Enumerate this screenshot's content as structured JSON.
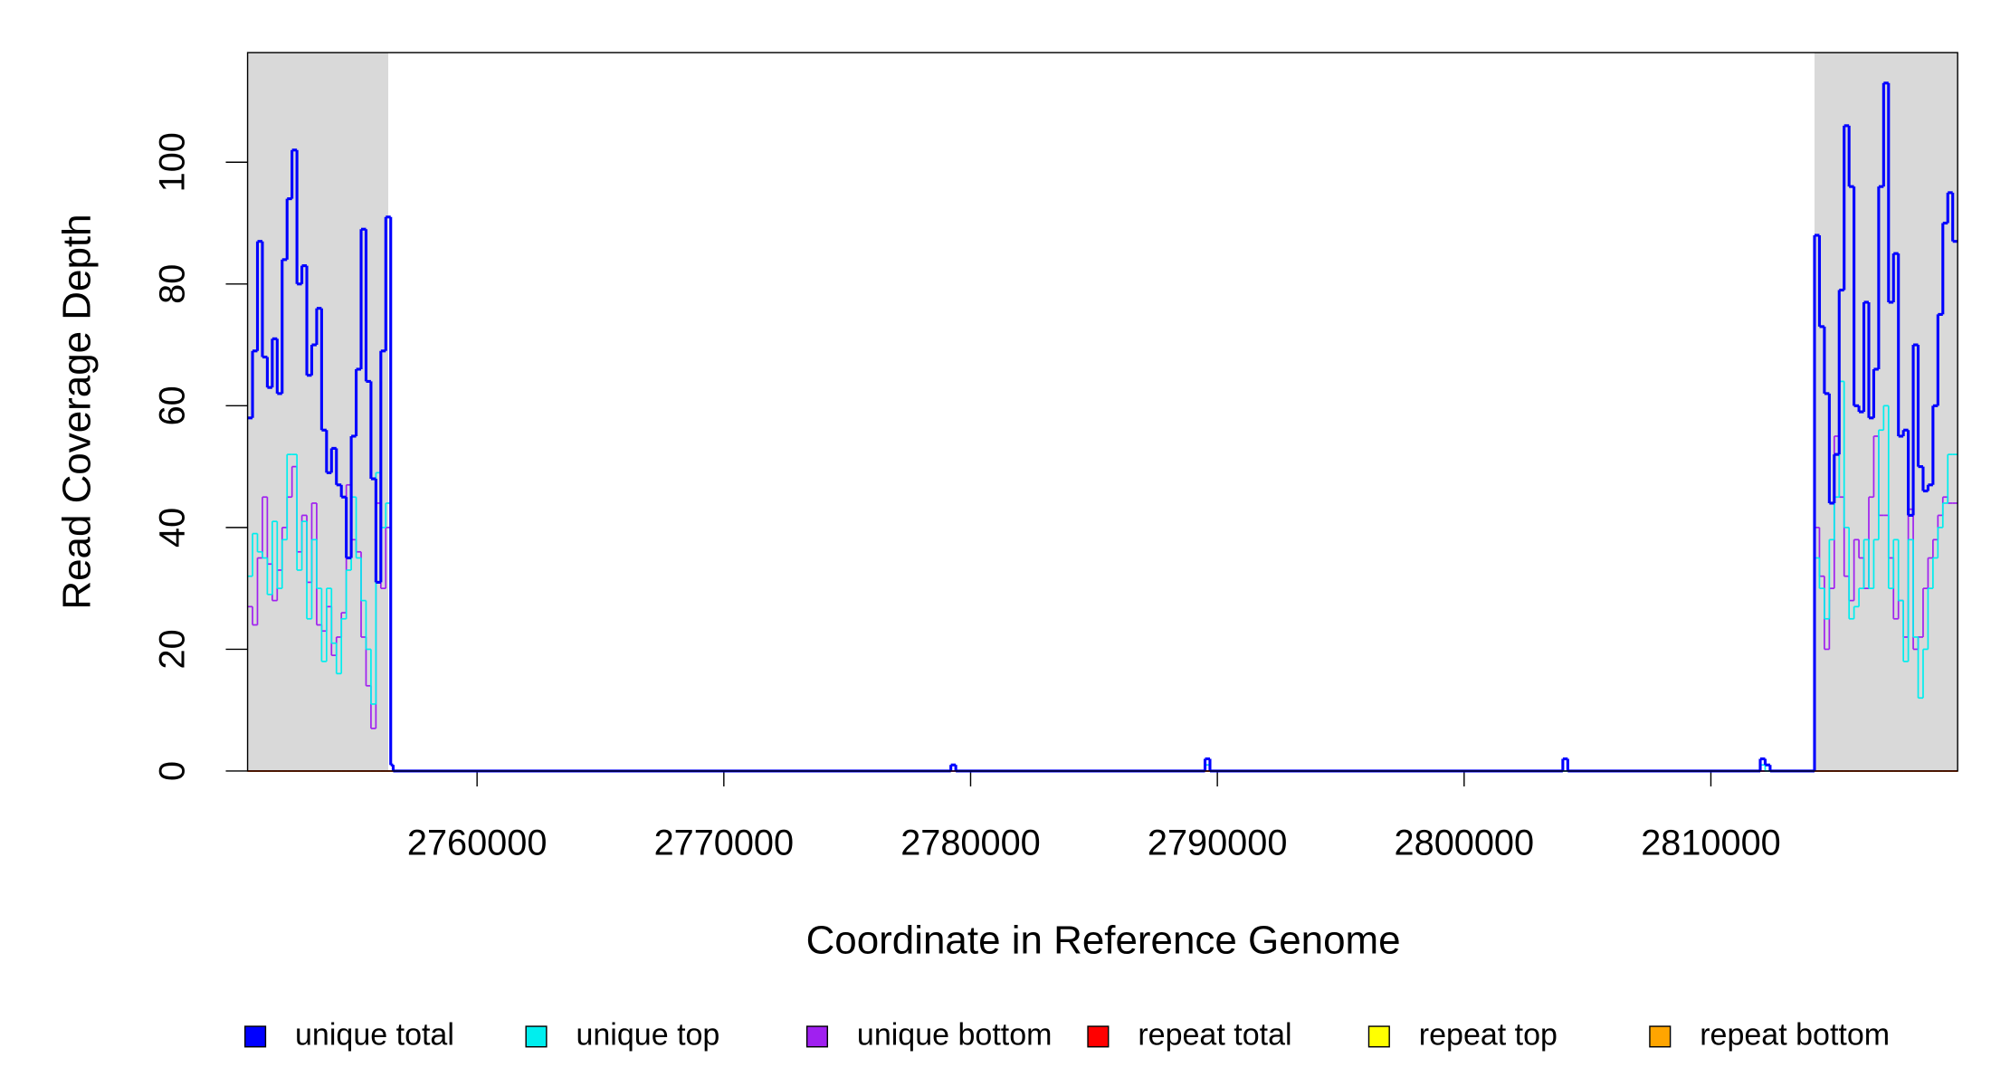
{
  "chart_data": {
    "type": "step",
    "x_label": "Coordinate in Reference Genome",
    "y_label": "Read Coverage Depth",
    "xlim": [
      2750700,
      2820000
    ],
    "ylim": [
      0,
      118
    ],
    "xticks": [
      2760000,
      2770000,
      2780000,
      2790000,
      2800000,
      2810000
    ],
    "yticks": [
      0,
      20,
      40,
      60,
      80,
      100
    ],
    "highlight_ranges": [
      [
        2750700,
        2756400
      ],
      [
        2814200,
        2820000
      ]
    ],
    "highlight_color": "#d9d9d9",
    "legend": "bottom",
    "x": [
      2750700,
      2750900,
      2751100,
      2751300,
      2751500,
      2751700,
      2751900,
      2752100,
      2752300,
      2752500,
      2752700,
      2752900,
      2753100,
      2753300,
      2753500,
      2753700,
      2753900,
      2754100,
      2754300,
      2754500,
      2754700,
      2754900,
      2755100,
      2755300,
      2755500,
      2755700,
      2755900,
      2756100,
      2756300,
      2756500,
      2756600,
      2779200,
      2779400,
      2789500,
      2789700,
      2804000,
      2804200,
      2812000,
      2812200,
      2812400,
      2814200,
      2814400,
      2814600,
      2814800,
      2815000,
      2815200,
      2815400,
      2815600,
      2815800,
      2816000,
      2816200,
      2816400,
      2816600,
      2816800,
      2817000,
      2817200,
      2817400,
      2817600,
      2817800,
      2818000,
      2818200,
      2818400,
      2818600,
      2818800,
      2819000,
      2819200,
      2819400,
      2819600,
      2819800
    ],
    "series": [
      {
        "name": "unique total",
        "color": "#0000ff",
        "width": 2.2,
        "values": [
          58,
          69,
          87,
          68,
          63,
          71,
          62,
          84,
          94,
          102,
          80,
          83,
          65,
          70,
          76,
          56,
          49,
          53,
          47,
          45,
          35,
          55,
          66,
          89,
          64,
          48,
          31,
          69,
          91,
          1,
          0,
          1,
          0,
          2,
          0,
          2,
          0,
          2,
          1,
          0,
          88,
          73,
          62,
          44,
          52,
          79,
          106,
          96,
          60,
          59,
          77,
          58,
          66,
          96,
          113,
          77,
          85,
          55,
          56,
          42,
          70,
          50,
          46,
          47,
          60,
          75,
          90,
          95,
          87
        ]
      },
      {
        "name": "unique top",
        "color": "#00eeee",
        "width": 1.2,
        "values": [
          32,
          39,
          36,
          35,
          29,
          41,
          30,
          38,
          52,
          52,
          33,
          41,
          25,
          38,
          30,
          18,
          30,
          21,
          16,
          25,
          33,
          45,
          35,
          28,
          20,
          11,
          49,
          40,
          44,
          1,
          0,
          1,
          0,
          1,
          0,
          0,
          0,
          1,
          0,
          0,
          35,
          30,
          25,
          38,
          45,
          64,
          40,
          25,
          27,
          30,
          38,
          30,
          38,
          56,
          60,
          30,
          38,
          28,
          18,
          38,
          22,
          12,
          20,
          30,
          35,
          40,
          44,
          52,
          52
        ]
      },
      {
        "name": "unique bottom",
        "color": "#a020f0",
        "width": 1.2,
        "values": [
          27,
          24,
          35,
          45,
          34,
          28,
          33,
          40,
          45,
          50,
          36,
          42,
          31,
          44,
          24,
          23,
          27,
          19,
          22,
          26,
          47,
          38,
          36,
          22,
          14,
          7,
          44,
          30,
          40,
          1,
          0,
          0,
          0,
          1,
          0,
          0,
          0,
          0,
          0,
          0,
          40,
          32,
          20,
          30,
          55,
          45,
          32,
          28,
          38,
          35,
          30,
          45,
          55,
          42,
          42,
          35,
          25,
          28,
          22,
          43,
          20,
          22,
          30,
          35,
          38,
          42,
          45,
          44,
          44
        ]
      },
      {
        "name": "repeat total",
        "color": "#ff0000",
        "width": 1.2,
        "values": [
          0,
          0,
          0,
          0,
          0,
          0,
          0,
          0,
          0,
          0,
          0,
          0,
          0,
          0,
          0,
          0,
          0,
          0,
          0,
          0,
          0,
          0,
          0,
          0,
          0,
          0,
          0,
          0,
          0,
          0,
          0,
          0,
          0,
          0,
          0,
          0,
          0,
          0,
          0,
          0,
          0,
          0,
          0,
          0,
          0,
          0,
          0,
          0,
          0,
          0,
          0,
          0,
          0,
          0,
          0,
          0,
          0,
          0,
          0,
          0,
          0,
          0,
          0,
          0,
          0,
          0,
          0,
          0,
          0
        ]
      },
      {
        "name": "repeat top",
        "color": "#ffff00",
        "width": 1.2,
        "values": [
          0,
          0,
          0,
          0,
          0,
          0,
          0,
          0,
          0,
          0,
          0,
          0,
          0,
          0,
          0,
          0,
          0,
          0,
          0,
          0,
          0,
          0,
          0,
          0,
          0,
          0,
          0,
          0,
          0,
          0,
          0,
          0,
          0,
          0,
          0,
          0,
          0,
          0,
          0,
          0,
          0,
          0,
          0,
          0,
          0,
          0,
          0,
          0,
          0,
          0,
          0,
          0,
          0,
          0,
          0,
          0,
          0,
          0,
          0,
          0,
          0,
          0,
          0,
          0,
          0,
          0,
          0,
          0,
          0
        ]
      },
      {
        "name": "repeat bottom",
        "color": "#ffa500",
        "width": 1.2,
        "values": [
          0,
          0,
          0,
          0,
          0,
          0,
          0,
          0,
          0,
          0,
          0,
          0,
          0,
          0,
          0,
          0,
          0,
          0,
          0,
          0,
          0,
          0,
          0,
          0,
          0,
          0,
          0,
          0,
          0,
          0,
          0,
          0,
          0,
          0,
          0,
          0,
          0,
          0,
          0,
          0,
          0,
          0,
          0,
          0,
          0,
          0,
          0,
          0,
          0,
          0,
          0,
          0,
          0,
          0,
          0,
          0,
          0,
          0,
          0,
          0,
          0,
          0,
          0,
          0,
          0,
          0,
          0,
          0,
          0
        ]
      }
    ]
  }
}
